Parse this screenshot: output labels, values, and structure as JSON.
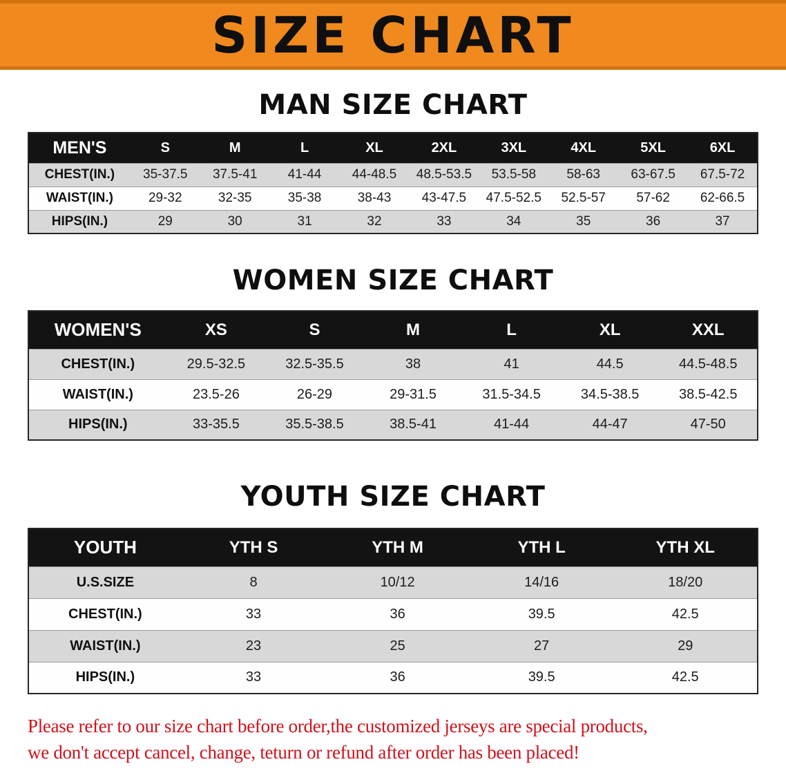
{
  "banner": {
    "title": "SIZE CHART"
  },
  "sections": {
    "men": {
      "heading": "MAN SIZE CHART",
      "table": {
        "header": [
          "MEN'S",
          "S",
          "M",
          "L",
          "XL",
          "2XL",
          "3XL",
          "4XL",
          "5XL",
          "6XL"
        ],
        "rows": [
          [
            "CHEST(IN.)",
            "35-37.5",
            "37.5-41",
            "41-44",
            "44-48.5",
            "48.5-53.5",
            "53.5-58",
            "58-63",
            "63-67.5",
            "67.5-72"
          ],
          [
            "WAIST(IN.)",
            "29-32",
            "32-35",
            "35-38",
            "38-43",
            "43-47.5",
            "47.5-52.5",
            "52.5-57",
            "57-62",
            "62-66.5"
          ],
          [
            "HIPS(IN.)",
            "29",
            "30",
            "31",
            "32",
            "33",
            "34",
            "35",
            "36",
            "37"
          ]
        ]
      }
    },
    "women": {
      "heading": "WOMEN SIZE CHART",
      "table": {
        "header": [
          "WOMEN'S",
          "XS",
          "S",
          "M",
          "L",
          "XL",
          "XXL"
        ],
        "rows": [
          [
            "CHEST(IN.)",
            "29.5-32.5",
            "32.5-35.5",
            "38",
            "41",
            "44.5",
            "44.5-48.5"
          ],
          [
            "WAIST(IN.)",
            "23.5-26",
            "26-29",
            "29-31.5",
            "31.5-34.5",
            "34.5-38.5",
            "38.5-42.5"
          ],
          [
            "HIPS(IN.)",
            "33-35.5",
            "35.5-38.5",
            "38.5-41",
            "41-44",
            "44-47",
            "47-50"
          ]
        ]
      }
    },
    "youth": {
      "heading": "YOUTH SIZE CHART",
      "table": {
        "header": [
          "YOUTH",
          "YTH S",
          "YTH M",
          "YTH L",
          "YTH XL"
        ],
        "rows": [
          [
            "U.S.SIZE",
            "8",
            "10/12",
            "14/16",
            "18/20"
          ],
          [
            "CHEST(IN.)",
            "33",
            "36",
            "39.5",
            "42.5"
          ],
          [
            "WAIST(IN.)",
            "23",
            "25",
            "27",
            "29"
          ],
          [
            "HIPS(IN.)",
            "33",
            "36",
            "39.5",
            "42.5"
          ]
        ]
      }
    }
  },
  "disclaimer": {
    "line1": "Please refer to our size chart before order,the customized jerseys are special products,",
    "line2": "we don't accept cancel, change, teturn or refund after order has been placed!"
  },
  "colors": {
    "banner_orange": "#F0891E",
    "banner_border_orange": "#D2720C",
    "table_header_black": "#131313",
    "row_gray": "#D8D8D8",
    "row_white": "#FEFEFE",
    "disclaimer_red": "#D0111B"
  }
}
